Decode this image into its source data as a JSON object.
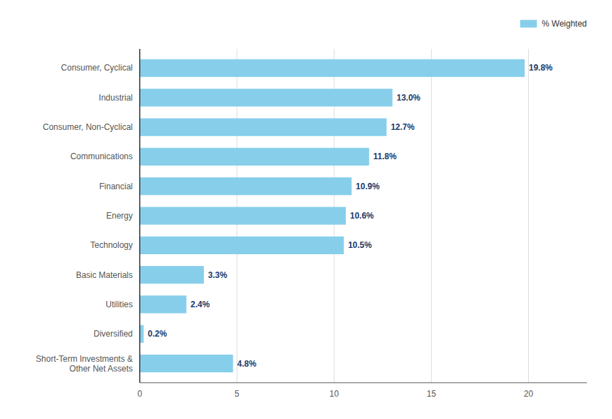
{
  "chart_data": {
    "type": "bar",
    "orientation": "horizontal",
    "categories": [
      "Short-Term Investments &\nOther Net Assets",
      "Diversified",
      "Utilities",
      "Basic Materials",
      "Technology",
      "Energy",
      "Financial",
      "Communications",
      "Consumer, Non-Cyclical",
      "Industrial",
      "Consumer, Cyclical"
    ],
    "series": [
      {
        "name": "% Weighted",
        "color": "#87CEEB",
        "values": [
          4.8,
          0.2,
          2.4,
          3.3,
          10.5,
          10.6,
          10.9,
          11.8,
          12.7,
          13.0,
          19.8
        ],
        "value_labels": [
          "4.8%",
          "0.2%",
          "2.4%",
          "3.3%",
          "10.5%",
          "10.6%",
          "10.9%",
          "11.8%",
          "12.7%",
          "13.0%",
          "19.8%"
        ]
      }
    ],
    "xlim": [
      0,
      23
    ],
    "xticks": [
      0,
      5,
      10,
      15,
      20
    ],
    "grid": true,
    "legend": "upper right",
    "data_labels": true
  }
}
